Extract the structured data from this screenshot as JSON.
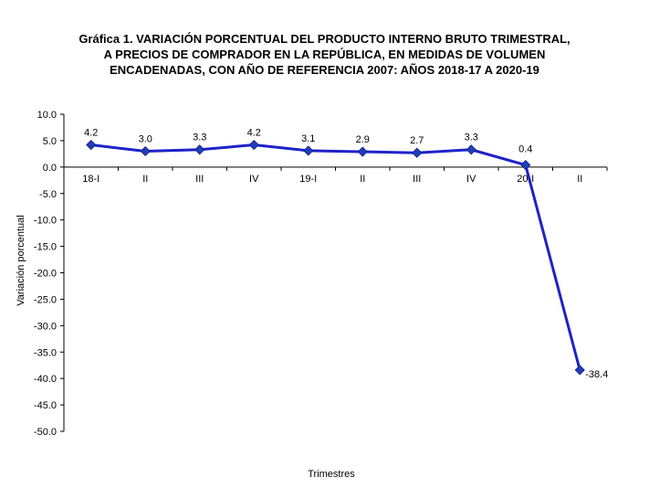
{
  "chart_data": {
    "type": "line",
    "title_lines": [
      "Gráfica 1. VARIACIÓN PORCENTUAL DEL PRODUCTO INTERNO BRUTO TRIMESTRAL,",
      "A PRECIOS DE COMPRADOR  EN LA REPÚBLICA, EN MEDIDAS DE  VOLUMEN",
      "ENCADENADAS, CON AÑO DE  REFERENCIA 2007: AÑOS 2018-17 A 2020-19"
    ],
    "xlabel": "Trimestres",
    "ylabel": "Variación porcentual",
    "categories": [
      "18-I",
      "II",
      "III",
      "IV",
      "19-I",
      "II",
      "III",
      "IV",
      "20-I",
      "II"
    ],
    "values": [
      4.2,
      3.0,
      3.3,
      4.2,
      3.1,
      2.9,
      2.7,
      3.3,
      0.4,
      -38.4
    ],
    "data_labels": [
      "4.2",
      "3.0",
      "3.3",
      "4.2",
      "3.1",
      "2.9",
      "2.7",
      "3.3",
      "0.4",
      "-38.4"
    ],
    "ylim": [
      -50,
      10
    ],
    "yticks": [
      "10.0",
      "5.0",
      "0.0",
      "-5.0",
      "-10.0",
      "-15.0",
      "-20.0",
      "-25.0",
      "-30.0",
      "-35.0",
      "-40.0",
      "-45.0",
      "-50.0"
    ],
    "grid": false,
    "legend": "none",
    "line_color": "#1f22c9",
    "marker_color": "#1f3fb8"
  }
}
